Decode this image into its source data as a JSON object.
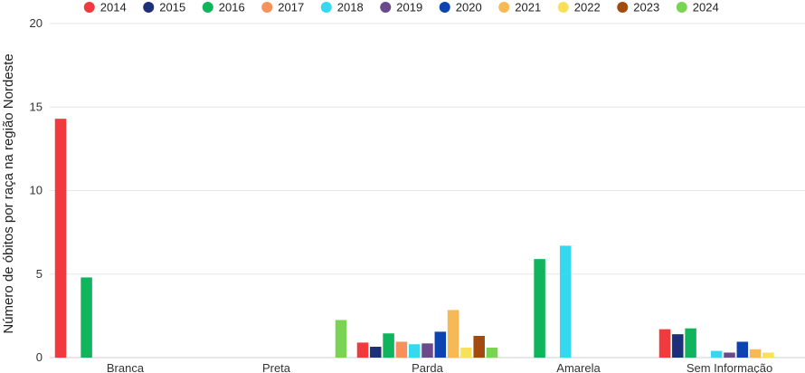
{
  "chart_data": {
    "type": "bar",
    "title": "",
    "xlabel": "",
    "ylabel": "Número de óbitos por raça na região Nordeste",
    "ylim": [
      0,
      20
    ],
    "yticks": [
      0,
      5,
      10,
      15,
      20
    ],
    "grid": true,
    "legend_position": "top",
    "categories": [
      "Branca",
      "Preta",
      "Parda",
      "Amarela",
      "Sem Informação"
    ],
    "series": [
      {
        "name": "2014",
        "color": "#f03a3e",
        "values": [
          14.3,
          0,
          0.9,
          0,
          1.7
        ]
      },
      {
        "name": "2015",
        "color": "#1e2f7a",
        "values": [
          0,
          0,
          0.65,
          0,
          1.4
        ]
      },
      {
        "name": "2016",
        "color": "#0fb45d",
        "values": [
          4.8,
          0,
          1.45,
          5.9,
          1.75
        ]
      },
      {
        "name": "2017",
        "color": "#f7905a",
        "values": [
          0,
          0,
          0.95,
          0,
          0
        ]
      },
      {
        "name": "2018",
        "color": "#34d9f0",
        "values": [
          0,
          0,
          0.8,
          6.7,
          0.4
        ]
      },
      {
        "name": "2019",
        "color": "#6a4a8a",
        "values": [
          0,
          0,
          0.85,
          0,
          0.3
        ]
      },
      {
        "name": "2020",
        "color": "#0d43b0",
        "values": [
          0,
          0,
          1.55,
          0,
          0.95
        ]
      },
      {
        "name": "2021",
        "color": "#f7b955",
        "values": [
          0,
          0,
          2.85,
          0,
          0.5
        ]
      },
      {
        "name": "2022",
        "color": "#f9e05a",
        "values": [
          0,
          0,
          0.6,
          0,
          0.3
        ]
      },
      {
        "name": "2023",
        "color": "#a34a0f",
        "values": [
          0,
          0,
          1.3,
          0,
          0
        ]
      },
      {
        "name": "2024",
        "color": "#7ad454",
        "values": [
          0,
          2.25,
          0.6,
          0,
          0
        ]
      }
    ]
  }
}
